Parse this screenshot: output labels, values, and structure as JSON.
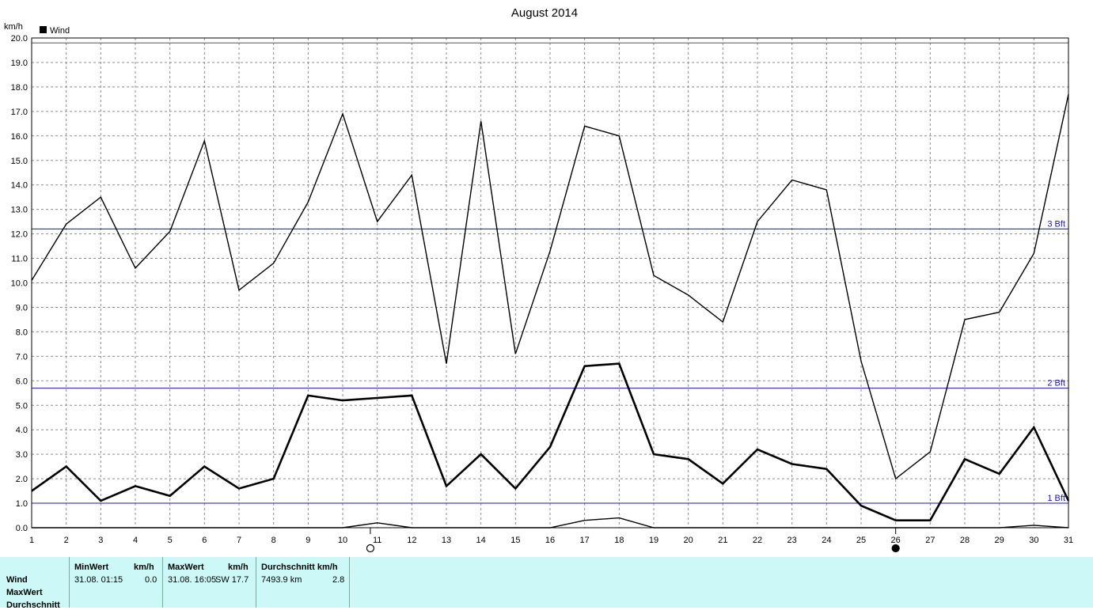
{
  "chart_data": {
    "type": "line",
    "title": "August 2014",
    "ylabel": "km/h",
    "legend": [
      "Wind"
    ],
    "ylim": [
      0,
      20
    ],
    "yticks": [
      "0.0",
      "1.0",
      "2.0",
      "3.0",
      "4.0",
      "5.0",
      "6.0",
      "7.0",
      "8.0",
      "9.0",
      "10.0",
      "11.0",
      "12.0",
      "13.0",
      "14.0",
      "15.0",
      "16.0",
      "17.0",
      "18.0",
      "19.0",
      "20.0"
    ],
    "x": [
      1,
      2,
      3,
      4,
      5,
      6,
      7,
      8,
      9,
      10,
      11,
      12,
      13,
      14,
      15,
      16,
      17,
      18,
      19,
      20,
      21,
      22,
      23,
      24,
      25,
      26,
      27,
      28,
      29,
      30,
      31
    ],
    "grid": true,
    "series": [
      {
        "name": "MaxWert",
        "values": [
          10.1,
          12.4,
          13.5,
          10.6,
          12.1,
          15.8,
          9.7,
          10.8,
          13.3,
          16.9,
          12.5,
          14.4,
          6.7,
          16.6,
          7.1,
          11.3,
          16.4,
          16.0,
          10.3,
          9.5,
          8.4,
          12.5,
          14.2,
          13.8,
          6.8,
          2.0,
          3.1,
          8.5,
          8.8,
          11.2,
          17.7
        ]
      },
      {
        "name": "Durchschnitt",
        "values": [
          1.5,
          2.5,
          1.1,
          1.7,
          1.3,
          2.5,
          1.6,
          2.0,
          5.4,
          5.2,
          5.3,
          5.4,
          1.7,
          3.0,
          1.6,
          3.3,
          6.6,
          6.7,
          3.0,
          2.8,
          1.8,
          3.2,
          2.6,
          2.4,
          0.9,
          0.3,
          0.3,
          2.8,
          2.2,
          4.1,
          1.1
        ]
      },
      {
        "name": "MinWert",
        "values": [
          0,
          0,
          0,
          0,
          0,
          0,
          0,
          0,
          0,
          0,
          0.2,
          0,
          0,
          0,
          0,
          0,
          0.3,
          0.4,
          0,
          0,
          0,
          0,
          0,
          0,
          0,
          0,
          0,
          0,
          0,
          0.1,
          0
        ]
      }
    ],
    "reference_lines": [
      {
        "label": "1 Bft",
        "value": 1.0
      },
      {
        "label": "2 Bft",
        "value": 5.7
      },
      {
        "label": "3 Bft",
        "value": 12.2
      }
    ],
    "top_line_value": 19.8,
    "moon_markers": [
      {
        "day": 10.8,
        "phase": "full"
      },
      {
        "day": 26,
        "phase": "new"
      }
    ]
  },
  "table": {
    "row_labels": [
      "Wind",
      "MaxWert",
      "Durchschnitt"
    ],
    "min": {
      "header": "MinWert",
      "unit": "km/h",
      "time": "31.08.  01:15",
      "value": "0.0"
    },
    "max": {
      "header": "MaxWert",
      "unit": "km/h",
      "time": "31.08.  16:05",
      "dir_value": "SW 17.7"
    },
    "avg": {
      "header": "Durchschnitt km/h",
      "distance": "7493.9 km",
      "value": "2.8"
    }
  },
  "colors": {
    "bft_line": "#1a1aa8",
    "table_bg": "#ccf9f8",
    "grid": "#8c8c8c"
  }
}
